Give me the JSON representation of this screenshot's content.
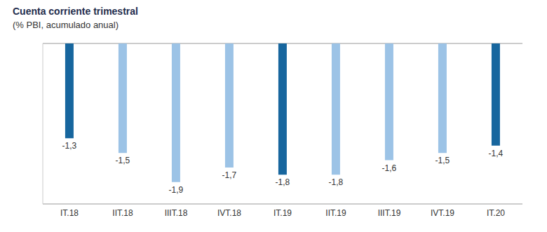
{
  "chart_data": {
    "type": "bar",
    "title": "Cuenta corriente trimestral",
    "subtitle": "(% PBI, acumulado anual)",
    "categories": [
      "IT.18",
      "IIT.18",
      "IIIT.18",
      "IVT.18",
      "IT.19",
      "IIT.19",
      "IIIT.19",
      "IVT.19",
      "IT.20"
    ],
    "values": [
      -1.3,
      -1.5,
      -1.9,
      -1.7,
      -1.8,
      -1.8,
      -1.6,
      -1.5,
      -1.4
    ],
    "value_labels": [
      "-1,3",
      "-1,5",
      "-1,9",
      "-1,7",
      "-1,8",
      "-1,8",
      "-1,6",
      "-1,5",
      "-1,4"
    ],
    "colors": [
      "#17669e",
      "#9cc3e6",
      "#9cc3e6",
      "#9cc3e6",
      "#17669e",
      "#9cc3e6",
      "#9cc3e6",
      "#9cc3e6",
      "#17669e"
    ],
    "ylim": [
      -2.2,
      0
    ],
    "yticks": [
      0
    ],
    "grid": true,
    "data_labels": true,
    "tick_labels": "x"
  }
}
